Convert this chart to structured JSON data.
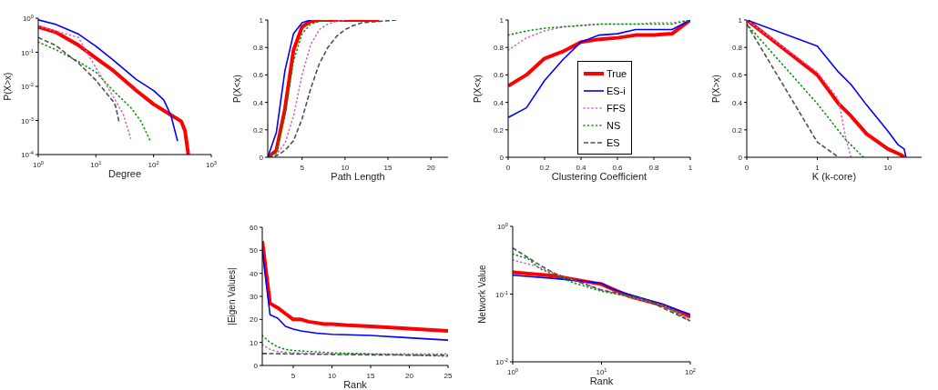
{
  "chart_data": [
    {
      "type": "line",
      "xlabel": "Degree",
      "ylabel": "P(X>x)",
      "log": "xy",
      "xlim": [
        1,
        1000
      ],
      "ylim": [
        0.0001,
        1
      ],
      "xticks": [
        {
          "value": 1,
          "label": "10$^{0}$"
        },
        {
          "value": 10,
          "label": "10$^{1}$"
        },
        {
          "value": 100,
          "label": "10$^{2}$"
        },
        {
          "value": 1000,
          "label": "10$^{3}$"
        }
      ],
      "yticks": [
        {
          "value": 0.0001,
          "label": "10$^{-4}$"
        },
        {
          "value": 0.001,
          "label": "10$^{-3}$"
        },
        {
          "value": 0.01,
          "label": "10$^{-2}$"
        },
        {
          "value": 0.1,
          "label": "10$^{-1}$"
        },
        {
          "value": 1,
          "label": "10$^{0}$"
        }
      ],
      "series": [
        {
          "color": "#ff0000",
          "line_style": "solid",
          "x": [
            1,
            2,
            5,
            10,
            20,
            50,
            100,
            200,
            300,
            350,
            400
          ],
          "values": [
            0.55,
            0.39,
            0.16,
            0.068,
            0.029,
            0.0076,
            0.003,
            0.00145,
            0.00095,
            0.0005,
            0.0001
          ]
        },
        {
          "color": "#0000ff",
          "line_style": "solid",
          "x": [
            1,
            2,
            5,
            10,
            20,
            50,
            100,
            150,
            200,
            260
          ],
          "values": [
            0.89,
            0.66,
            0.34,
            0.15,
            0.059,
            0.016,
            0.0075,
            0.004,
            0.0014,
            0.00025
          ]
        },
        {
          "color": "#cc66cc",
          "line_style": "dotted",
          "x": [
            1,
            2,
            5,
            10,
            20,
            30,
            40
          ],
          "values": [
            0.6,
            0.42,
            0.27,
            0.035,
            0.005,
            0.0015,
            0.0003
          ]
        },
        {
          "color": "#009900",
          "line_style": "dotted",
          "x": [
            1,
            2,
            5,
            10,
            20,
            40,
            60,
            90
          ],
          "values": [
            0.2,
            0.12,
            0.053,
            0.026,
            0.0075,
            0.0024,
            0.00096,
            0.00023
          ]
        },
        {
          "color": "#505050",
          "line_style": "dashed",
          "x": [
            1,
            2,
            5,
            10,
            20,
            22,
            25
          ],
          "values": [
            0.27,
            0.16,
            0.048,
            0.015,
            0.0036,
            0.0026,
            0.00095
          ]
        }
      ]
    },
    {
      "type": "line",
      "xlabel": "Path Length",
      "ylabel": "P(X<x)",
      "xlim": [
        1,
        22
      ],
      "ylim": [
        0,
        1
      ],
      "xticks": [
        5,
        10,
        15,
        20
      ],
      "yticks": [
        0,
        0.2,
        0.4,
        0.6,
        0.8,
        1
      ],
      "series": [
        {
          "color": "#ff0000",
          "line_style": "solid",
          "x": [
            1,
            2,
            3,
            4,
            5,
            6,
            7,
            14
          ],
          "values": [
            0,
            0.05,
            0.35,
            0.78,
            0.95,
            0.99,
            1,
            1
          ]
        },
        {
          "color": "#0000ff",
          "line_style": "solid",
          "x": [
            1,
            2,
            3,
            4,
            5,
            6
          ],
          "values": [
            0,
            0.18,
            0.63,
            0.9,
            0.98,
            1
          ]
        },
        {
          "color": "#cc66cc",
          "line_style": "dotted",
          "x": [
            1,
            2,
            3,
            4,
            5,
            6,
            7,
            8,
            9,
            10
          ],
          "values": [
            0,
            0.02,
            0.1,
            0.3,
            0.6,
            0.82,
            0.93,
            0.97,
            0.99,
            1
          ]
        },
        {
          "color": "#009900",
          "line_style": "dotted",
          "x": [
            1,
            2,
            3,
            4,
            5,
            6,
            7,
            8
          ],
          "values": [
            0,
            0.03,
            0.3,
            0.7,
            0.9,
            0.97,
            0.99,
            1
          ]
        },
        {
          "color": "#505050",
          "line_style": "dashed",
          "x": [
            1,
            2,
            3,
            4,
            5,
            6,
            7,
            8,
            9,
            10,
            11,
            12,
            14,
            16
          ],
          "values": [
            0,
            0.01,
            0.05,
            0.12,
            0.28,
            0.5,
            0.68,
            0.8,
            0.88,
            0.93,
            0.96,
            0.98,
            0.99,
            1
          ]
        }
      ]
    },
    {
      "type": "line",
      "xlabel": "Clustering Coefficient",
      "ylabel": "P(X<x)",
      "xlim": [
        0,
        1
      ],
      "ylim": [
        0,
        1
      ],
      "xticks": [
        0,
        0.2,
        0.4,
        0.6,
        0.8,
        1
      ],
      "yticks": [
        0,
        0.2,
        0.4,
        0.6,
        0.8,
        1
      ],
      "legend": "bottom right",
      "x": [
        0,
        0.1,
        0.2,
        0.3,
        0.4,
        0.5,
        0.6,
        0.7,
        0.8,
        0.9,
        1
      ],
      "series": [
        {
          "name": "True",
          "color": "#ff0000",
          "line_style": "solid",
          "values": [
            0.52,
            0.6,
            0.72,
            0.77,
            0.84,
            0.86,
            0.87,
            0.89,
            0.89,
            0.9,
            1
          ]
        },
        {
          "name": "ES-i",
          "color": "#0000ff",
          "line_style": "solid",
          "values": [
            0.29,
            0.36,
            0.56,
            0.71,
            0.84,
            0.89,
            0.9,
            0.93,
            0.93,
            0.93,
            1
          ]
        },
        {
          "name": "FFS",
          "color": "#cc66cc",
          "line_style": "dotted",
          "values": [
            0.78,
            0.87,
            0.92,
            0.95,
            0.96,
            0.97,
            0.97,
            0.97,
            0.98,
            0.98,
            1
          ]
        },
        {
          "name": "NS",
          "color": "#009900",
          "line_style": "dotted",
          "values": [
            0.89,
            0.92,
            0.94,
            0.95,
            0.96,
            0.97,
            0.97,
            0.97,
            0.97,
            0.97,
            1
          ]
        },
        {
          "name": "ES",
          "color": "#505050",
          "line_style": "dashed",
          "values": [
            null,
            null,
            null,
            null,
            null,
            null,
            null,
            null,
            null,
            null,
            null
          ]
        }
      ]
    },
    {
      "type": "line",
      "xlabel": "K (k-core)",
      "ylabel": "P(X>x)",
      "log": "x",
      "xlim": [
        0.1,
        30
      ],
      "ylim": [
        0,
        1
      ],
      "xticks": [
        {
          "value": 0.1,
          "label": "0"
        },
        1,
        10
      ],
      "yticks": [
        0,
        0.2,
        0.4,
        0.6,
        0.8,
        1
      ],
      "series": [
        {
          "color": "#ff0000",
          "line_style": "solid",
          "x": [
            0.1,
            1,
            2,
            3,
            5,
            10,
            15,
            17
          ],
          "values": [
            1,
            0.6,
            0.39,
            0.3,
            0.17,
            0.06,
            0.02,
            0
          ]
        },
        {
          "color": "#0000ff",
          "line_style": "solid",
          "x": [
            0.1,
            1,
            2,
            3,
            5,
            10,
            14,
            17,
            18
          ],
          "values": [
            1,
            0.81,
            0.62,
            0.53,
            0.38,
            0.19,
            0.09,
            0.06,
            0
          ]
        },
        {
          "color": "#cc66cc",
          "line_style": "dotted",
          "x": [
            0.1,
            1,
            2,
            2.5,
            3
          ],
          "values": [
            1,
            0.62,
            0.42,
            0.15,
            0
          ]
        },
        {
          "color": "#009900",
          "line_style": "dotted",
          "x": [
            0.1,
            1,
            2.5,
            4.5
          ],
          "values": [
            0.97,
            0.39,
            0.13,
            0
          ]
        },
        {
          "color": "#505050",
          "line_style": "dashed",
          "x": [
            0.1,
            1,
            2
          ],
          "values": [
            0.97,
            0.11,
            0
          ]
        }
      ]
    },
    {
      "type": "line",
      "xlabel": "Rank",
      "ylabel": "|Eigen Values|",
      "xlim": [
        1,
        25
      ],
      "ylim": [
        0,
        60
      ],
      "xticks": [
        5,
        10,
        15,
        20,
        25
      ],
      "yticks": [
        0,
        10,
        20,
        30,
        40,
        50,
        60
      ],
      "series": [
        {
          "color": "#ff0000",
          "line_style": "solid",
          "x": [
            1,
            2,
            3,
            4,
            5,
            6,
            7,
            8,
            9,
            10,
            12,
            15,
            20,
            25
          ],
          "values": [
            54,
            27,
            25,
            22.5,
            20,
            20,
            19,
            18.5,
            18,
            18,
            17.5,
            17,
            16,
            15
          ]
        },
        {
          "color": "#0000ff",
          "line_style": "solid",
          "x": [
            1,
            2,
            3,
            4,
            5,
            6,
            8,
            10,
            15,
            20,
            25
          ],
          "values": [
            50,
            22,
            20.5,
            17,
            15.8,
            15,
            14,
            13.5,
            13,
            12,
            11
          ]
        },
        {
          "color": "#cc66cc",
          "line_style": "dotted",
          "x": [
            1,
            2,
            3,
            5,
            10,
            15,
            20,
            25
          ],
          "values": [
            9,
            7,
            6,
            5.5,
            5,
            5,
            5,
            5
          ]
        },
        {
          "color": "#009900",
          "line_style": "dotted",
          "x": [
            1,
            2,
            3,
            4,
            5,
            10,
            15,
            20,
            25
          ],
          "values": [
            13,
            10,
            8,
            7,
            6.5,
            5.5,
            5,
            4.5,
            4
          ]
        },
        {
          "color": "#505050",
          "line_style": "dashed",
          "x": [
            1,
            5,
            10,
            15,
            20,
            25
          ],
          "values": [
            5.2,
            5,
            4.8,
            4.6,
            4.5,
            4.5
          ]
        }
      ]
    },
    {
      "type": "line",
      "xlabel": "Rank",
      "ylabel": "Network Value",
      "log": "xy",
      "xlim": [
        1,
        100
      ],
      "ylim": [
        0.01,
        1
      ],
      "xticks": [
        {
          "value": 1,
          "label": "10$^{0}$"
        },
        {
          "value": 10,
          "label": "10$^{1}$"
        },
        {
          "value": 100,
          "label": "10$^{2}$"
        }
      ],
      "yticks": [
        {
          "value": 0.01,
          "label": "10$^{-2}$"
        },
        {
          "value": 0.1,
          "label": "10$^{-1}$"
        },
        {
          "value": 1,
          "label": "10$^{0}$"
        }
      ],
      "series": [
        {
          "color": "#ff0000",
          "line_style": "solid",
          "x": [
            1,
            3,
            10,
            20,
            50,
            100
          ],
          "values": [
            0.21,
            0.185,
            0.14,
            0.094,
            0.068,
            0.046
          ]
        },
        {
          "color": "#0000ff",
          "line_style": "solid",
          "x": [
            1,
            3,
            10,
            13,
            20,
            50,
            100
          ],
          "values": [
            0.19,
            0.17,
            0.145,
            0.12,
            0.1,
            0.07,
            0.05
          ]
        },
        {
          "color": "#cc66cc",
          "line_style": "dotted",
          "x": [
            1,
            2,
            3,
            10,
            50,
            100
          ],
          "values": [
            0.32,
            0.25,
            0.2,
            0.115,
            0.068,
            0.043
          ]
        },
        {
          "color": "#009900",
          "line_style": "dotted",
          "x": [
            1,
            1.5,
            2,
            3,
            5,
            10,
            20,
            50,
            100
          ],
          "values": [
            0.39,
            0.33,
            0.24,
            0.19,
            0.145,
            0.11,
            0.093,
            0.068,
            0.04
          ]
        },
        {
          "color": "#505050",
          "line_style": "dashed",
          "x": [
            1,
            2,
            3,
            10,
            30,
            100
          ],
          "values": [
            0.48,
            0.27,
            0.2,
            0.115,
            0.085,
            0.04
          ]
        }
      ]
    }
  ]
}
